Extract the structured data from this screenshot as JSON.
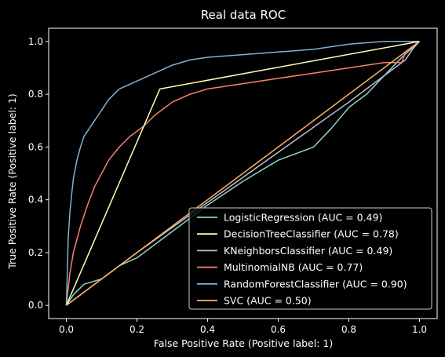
{
  "chart_data": {
    "type": "line",
    "title": "Real data ROC",
    "xlabel": "False Positive Rate (Positive label: 1)",
    "ylabel": "True Positive Rate (Positive label: 1)",
    "xlim": [
      -0.05,
      1.05
    ],
    "ylim": [
      -0.05,
      1.05
    ],
    "xticks": [
      0.0,
      0.2,
      0.4,
      0.6,
      0.8,
      1.0
    ],
    "yticks": [
      0.0,
      0.2,
      0.4,
      0.6,
      0.8,
      1.0
    ],
    "xtick_labels": [
      "0.0",
      "0.2",
      "0.4",
      "0.6",
      "0.8",
      "1.0"
    ],
    "ytick_labels": [
      "0.0",
      "0.2",
      "0.4",
      "0.6",
      "0.8",
      "1.0"
    ],
    "grid": false,
    "legend_position": "lower-right",
    "background_color": "#000000",
    "text_color": "#ffffff",
    "series": [
      {
        "name": "LogisticRegression (AUC = 0.49)",
        "color": "#8dd3c7",
        "x": [
          0.0,
          0.02,
          0.05,
          0.1,
          0.15,
          0.2,
          0.3,
          0.4,
          0.5,
          0.6,
          0.7,
          0.75,
          0.8,
          0.85,
          0.9,
          0.95,
          1.0
        ],
        "y": [
          0.0,
          0.04,
          0.08,
          0.1,
          0.15,
          0.18,
          0.28,
          0.38,
          0.47,
          0.55,
          0.6,
          0.67,
          0.75,
          0.8,
          0.87,
          0.94,
          1.0
        ]
      },
      {
        "name": "DecisionTreeClassifier (AUC = 0.78)",
        "color": "#ffffb3",
        "x": [
          0.0,
          0.265,
          1.0
        ],
        "y": [
          0.0,
          0.82,
          1.0
        ]
      },
      {
        "name": "KNeighborsClassifier (AUC = 0.49)",
        "color": "#bebada",
        "x": [
          0.0,
          0.2,
          0.4,
          0.6,
          0.8,
          0.9,
          0.96,
          0.98,
          1.0
        ],
        "y": [
          0.0,
          0.2,
          0.39,
          0.58,
          0.77,
          0.87,
          0.93,
          0.97,
          1.0
        ]
      },
      {
        "name": "MultinomialNB (AUC = 0.77)",
        "color": "#fb8072",
        "x": [
          0.0,
          0.01,
          0.02,
          0.04,
          0.06,
          0.08,
          0.1,
          0.12,
          0.15,
          0.18,
          0.2,
          0.22,
          0.25,
          0.28,
          0.3,
          0.35,
          0.4,
          0.45,
          0.5,
          0.6,
          0.7,
          0.8,
          0.9,
          0.95,
          0.96,
          0.97,
          0.98,
          1.0
        ],
        "y": [
          0.0,
          0.12,
          0.2,
          0.3,
          0.38,
          0.45,
          0.5,
          0.55,
          0.6,
          0.64,
          0.66,
          0.68,
          0.72,
          0.75,
          0.77,
          0.8,
          0.82,
          0.83,
          0.84,
          0.86,
          0.88,
          0.9,
          0.92,
          0.92,
          0.96,
          0.97,
          0.98,
          1.0
        ]
      },
      {
        "name": "RandomForestClassifier (AUC = 0.90)",
        "color": "#80b1d3",
        "x": [
          0.0,
          0.003,
          0.005,
          0.01,
          0.015,
          0.02,
          0.03,
          0.04,
          0.05,
          0.06,
          0.08,
          0.1,
          0.12,
          0.15,
          0.2,
          0.25,
          0.3,
          0.35,
          0.4,
          0.5,
          0.6,
          0.7,
          0.8,
          0.9,
          1.0
        ],
        "y": [
          0.0,
          0.12,
          0.25,
          0.35,
          0.42,
          0.48,
          0.55,
          0.6,
          0.64,
          0.66,
          0.7,
          0.74,
          0.78,
          0.82,
          0.85,
          0.88,
          0.91,
          0.93,
          0.94,
          0.95,
          0.96,
          0.97,
          0.99,
          1.0,
          1.0
        ]
      },
      {
        "name": "SVC (AUC = 0.50)",
        "color": "#fdb462",
        "x": [
          0.0,
          1.0
        ],
        "y": [
          0.0,
          1.0
        ]
      }
    ]
  }
}
